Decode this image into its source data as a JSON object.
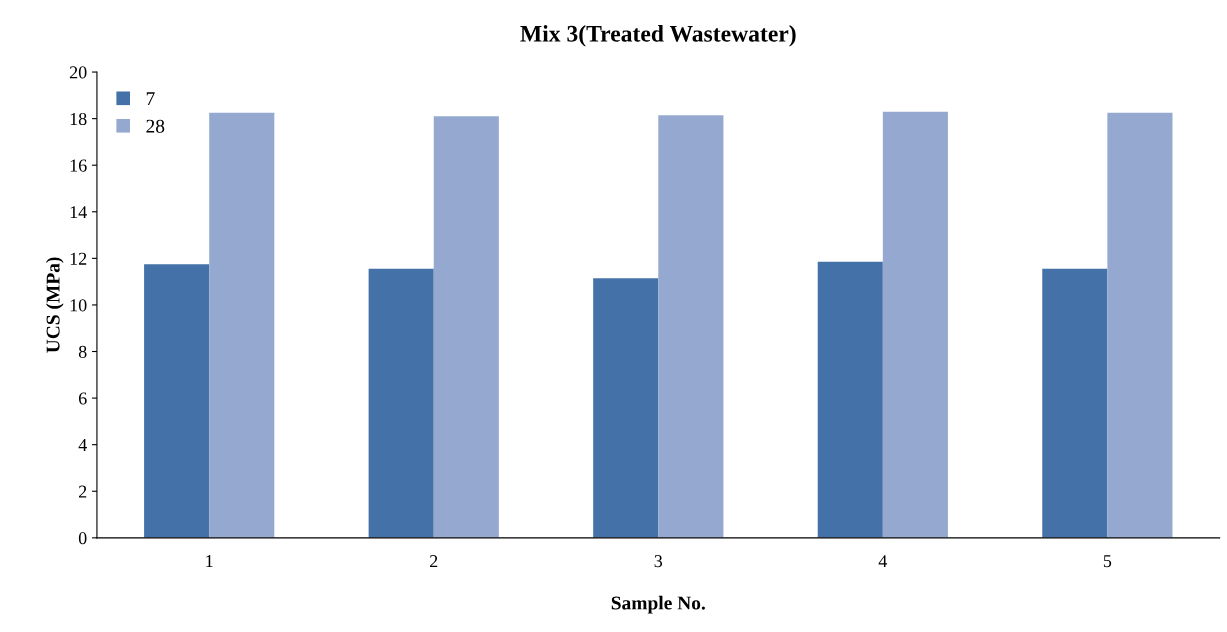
{
  "chart_data": {
    "type": "bar",
    "title": "Mix 3(Treated Wastewater)",
    "xlabel": "Sample No.",
    "ylabel": "UCS (MPa)",
    "categories": [
      "1",
      "2",
      "3",
      "4",
      "5"
    ],
    "series": [
      {
        "name": "7",
        "color": "#4472a8",
        "values": [
          11.75,
          11.55,
          11.15,
          11.85,
          11.55
        ]
      },
      {
        "name": "28",
        "color": "#95a9d0",
        "values": [
          18.25,
          18.1,
          18.15,
          18.3,
          18.25
        ]
      }
    ],
    "ylim": [
      0,
      20
    ],
    "yticks": [
      0,
      2,
      4,
      6,
      8,
      10,
      12,
      14,
      16,
      18,
      20
    ],
    "grid": false,
    "legend": "top left"
  }
}
